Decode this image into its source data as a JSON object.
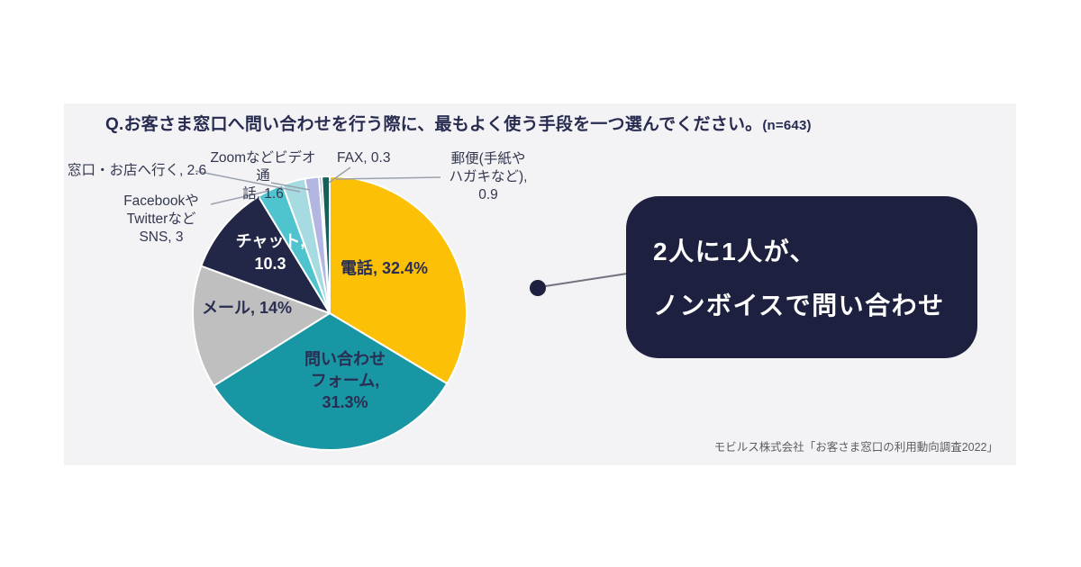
{
  "header": {
    "title": "Q.お客さま窓口へ問い合わせを行う際に、最もよく使う手段を一つ選んでください。",
    "sample": "(n=643)"
  },
  "chart_data": {
    "type": "pie",
    "title": "Q.お客さま窓口へ問い合わせを行う際に、最もよく使う手段を一つ選んでください。(n=643)",
    "unit": "%",
    "start_angle_deg": 0,
    "direction": "clockwise",
    "note": "values as shown sum to 96.4; slices rendered proportionally",
    "segments": [
      {
        "label": "電話",
        "value": 32.4,
        "color": "#FCC107"
      },
      {
        "label": "問い合わせフォーム",
        "value": 31.3,
        "color": "#1896A3"
      },
      {
        "label": "メール",
        "value": 14,
        "color": "#BFBFBF"
      },
      {
        "label": "チャット",
        "value": 10.3,
        "color": "#232747"
      },
      {
        "label": "FacebookやTwitterなどSNS",
        "value": 3,
        "color": "#4FC4CE"
      },
      {
        "label": "窓口・お店へ行く",
        "value": 2.6,
        "color": "#A5DBE1"
      },
      {
        "label": "Zoomなどビデオ通話",
        "value": 1.6,
        "color": "#B3B6E0"
      },
      {
        "label": "FAX",
        "value": 0.3,
        "color": "#8A90C6"
      },
      {
        "label": "郵便(手紙やハガキなど)",
        "value": 0.9,
        "color": "#16605A"
      }
    ]
  },
  "pie_labels": {
    "phone": "電話, 32.4%",
    "form_lines": [
      "問い合わせ",
      "フォーム,",
      "31.3%"
    ],
    "mail": "メール, 14%",
    "chat_lines": [
      "チャット,",
      "10.3"
    ],
    "sns_lines": [
      "Facebookや",
      "Twitterなど",
      "SNS, 3"
    ],
    "counter": "窓口・お店へ行く, 2.6",
    "video_lines": [
      "Zoomなどビデオ通",
      "話, 1.6"
    ],
    "fax": "FAX, 0.3",
    "post_lines": [
      "郵便(手紙や",
      "ハガキなど),",
      "0.9"
    ]
  },
  "callout": {
    "line1": "2人に1人が、",
    "line2": "ノンボイスで問い合わせ",
    "bg": "#1d203e",
    "text_color": "#ffffff"
  },
  "source": "モビルス株式会社「お客さま窓口の利用動向調査2022」",
  "colors": {
    "panel_bg": "#f3f3f5",
    "title_text": "#272b50",
    "leader_line": "#9aa1ad",
    "accent_navy": "#1d203e"
  }
}
